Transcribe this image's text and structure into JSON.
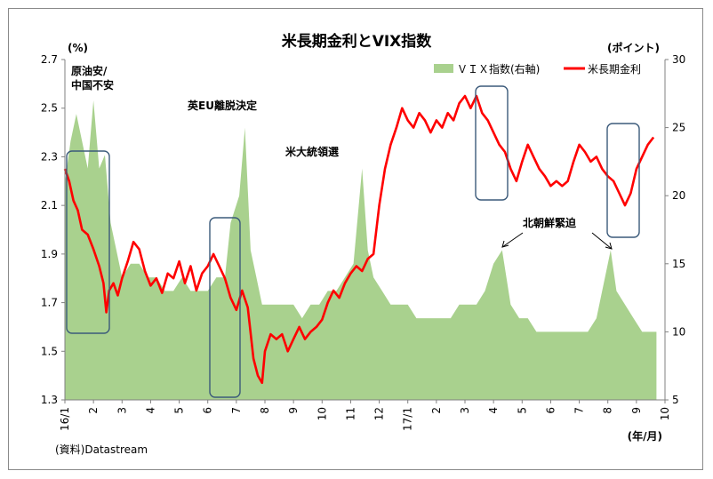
{
  "chart_data": {
    "type": "line",
    "title": "米長期金利とVIX指数",
    "y_left_unit": "(%)",
    "y_right_unit": "(ポイント)",
    "x_unit": "(年/月)",
    "source": "(資料)Datastream",
    "y_left_range": [
      1.3,
      2.7
    ],
    "y_left_ticks": [
      "2.7",
      "2.5",
      "2.3",
      "2.1",
      "1.9",
      "1.7",
      "1.5",
      "1.3"
    ],
    "y_right_range": [
      5,
      30
    ],
    "y_right_ticks": [
      "30",
      "25",
      "20",
      "15",
      "10",
      "5"
    ],
    "x_ticks": [
      "16/1",
      "2",
      "3",
      "4",
      "5",
      "6",
      "7",
      "8",
      "9",
      "10",
      "11",
      "12",
      "17/1",
      "2",
      "3",
      "4",
      "5",
      "6",
      "7",
      "8",
      "9",
      "10"
    ],
    "legend": {
      "vix_label": "ＶＩＸ指数(右軸)",
      "yield_label": "米長期金利",
      "position": "top-right"
    },
    "annotations": [
      {
        "label": "原油安/",
        "label2": "中国不安"
      },
      {
        "label": "英EU離脱決定"
      },
      {
        "label": "米大統領選"
      },
      {
        "label": "北朝鮮緊迫"
      }
    ],
    "series": [
      {
        "name": "米長期金利",
        "axis": "left",
        "color": "#ff0000",
        "points": [
          [
            0,
            2.25
          ],
          [
            0.15,
            2.2
          ],
          [
            0.3,
            2.12
          ],
          [
            0.45,
            2.08
          ],
          [
            0.6,
            2.0
          ],
          [
            0.8,
            1.98
          ],
          [
            1.0,
            1.92
          ],
          [
            1.2,
            1.85
          ],
          [
            1.35,
            1.78
          ],
          [
            1.45,
            1.66
          ],
          [
            1.55,
            1.75
          ],
          [
            1.7,
            1.78
          ],
          [
            1.85,
            1.73
          ],
          [
            2.0,
            1.8
          ],
          [
            2.2,
            1.87
          ],
          [
            2.4,
            1.95
          ],
          [
            2.6,
            1.92
          ],
          [
            2.8,
            1.83
          ],
          [
            3.0,
            1.77
          ],
          [
            3.2,
            1.8
          ],
          [
            3.4,
            1.74
          ],
          [
            3.6,
            1.82
          ],
          [
            3.8,
            1.8
          ],
          [
            4.0,
            1.87
          ],
          [
            4.2,
            1.78
          ],
          [
            4.4,
            1.85
          ],
          [
            4.6,
            1.75
          ],
          [
            4.8,
            1.82
          ],
          [
            5.0,
            1.85
          ],
          [
            5.2,
            1.9
          ],
          [
            5.4,
            1.85
          ],
          [
            5.6,
            1.8
          ],
          [
            5.8,
            1.72
          ],
          [
            6.0,
            1.67
          ],
          [
            6.2,
            1.75
          ],
          [
            6.4,
            1.68
          ],
          [
            6.6,
            1.47
          ],
          [
            6.75,
            1.4
          ],
          [
            6.9,
            1.37
          ],
          [
            7.0,
            1.5
          ],
          [
            7.2,
            1.57
          ],
          [
            7.4,
            1.55
          ],
          [
            7.6,
            1.57
          ],
          [
            7.8,
            1.5
          ],
          [
            8.0,
            1.55
          ],
          [
            8.2,
            1.6
          ],
          [
            8.4,
            1.55
          ],
          [
            8.6,
            1.58
          ],
          [
            8.8,
            1.6
          ],
          [
            9.0,
            1.63
          ],
          [
            9.2,
            1.7
          ],
          [
            9.4,
            1.75
          ],
          [
            9.6,
            1.72
          ],
          [
            9.8,
            1.78
          ],
          [
            10.0,
            1.82
          ],
          [
            10.2,
            1.85
          ],
          [
            10.4,
            1.83
          ],
          [
            10.6,
            1.88
          ],
          [
            10.8,
            1.9
          ],
          [
            11.0,
            2.1
          ],
          [
            11.2,
            2.25
          ],
          [
            11.4,
            2.35
          ],
          [
            11.6,
            2.42
          ],
          [
            11.8,
            2.5
          ],
          [
            12.0,
            2.45
          ],
          [
            12.2,
            2.42
          ],
          [
            12.4,
            2.48
          ],
          [
            12.6,
            2.45
          ],
          [
            12.8,
            2.4
          ],
          [
            13.0,
            2.45
          ],
          [
            13.2,
            2.42
          ],
          [
            13.4,
            2.48
          ],
          [
            13.6,
            2.45
          ],
          [
            13.8,
            2.52
          ],
          [
            14.0,
            2.55
          ],
          [
            14.2,
            2.5
          ],
          [
            14.4,
            2.55
          ],
          [
            14.6,
            2.48
          ],
          [
            14.8,
            2.45
          ],
          [
            15.0,
            2.4
          ],
          [
            15.2,
            2.35
          ],
          [
            15.4,
            2.32
          ],
          [
            15.6,
            2.25
          ],
          [
            15.8,
            2.2
          ],
          [
            16.0,
            2.28
          ],
          [
            16.2,
            2.35
          ],
          [
            16.4,
            2.3
          ],
          [
            16.6,
            2.25
          ],
          [
            16.8,
            2.22
          ],
          [
            17.0,
            2.18
          ],
          [
            17.2,
            2.2
          ],
          [
            17.4,
            2.18
          ],
          [
            17.6,
            2.2
          ],
          [
            17.8,
            2.28
          ],
          [
            18.0,
            2.35
          ],
          [
            18.2,
            2.32
          ],
          [
            18.4,
            2.28
          ],
          [
            18.6,
            2.3
          ],
          [
            18.8,
            2.25
          ],
          [
            19.0,
            2.22
          ],
          [
            19.2,
            2.2
          ],
          [
            19.4,
            2.15
          ],
          [
            19.6,
            2.1
          ],
          [
            19.8,
            2.15
          ],
          [
            20.0,
            2.25
          ],
          [
            20.2,
            2.3
          ],
          [
            20.4,
            2.35
          ],
          [
            20.6,
            2.38
          ]
        ]
      },
      {
        "name": "ＶＩＸ指数",
        "axis": "right",
        "color": "#a9d18e",
        "points": [
          [
            0,
            21
          ],
          [
            0.2,
            24
          ],
          [
            0.4,
            26
          ],
          [
            0.6,
            24
          ],
          [
            0.8,
            22
          ],
          [
            1.0,
            27
          ],
          [
            1.2,
            22
          ],
          [
            1.4,
            23
          ],
          [
            1.6,
            18
          ],
          [
            1.8,
            16
          ],
          [
            2.0,
            14
          ],
          [
            2.3,
            15
          ],
          [
            2.6,
            15
          ],
          [
            2.9,
            14
          ],
          [
            3.2,
            14
          ],
          [
            3.5,
            13
          ],
          [
            3.8,
            13
          ],
          [
            4.1,
            14
          ],
          [
            4.4,
            13
          ],
          [
            4.7,
            13
          ],
          [
            5.0,
            13
          ],
          [
            5.3,
            14
          ],
          [
            5.6,
            14
          ],
          [
            5.8,
            18
          ],
          [
            6.1,
            20
          ],
          [
            6.3,
            25
          ],
          [
            6.5,
            16
          ],
          [
            6.7,
            14
          ],
          [
            6.9,
            12
          ],
          [
            7.1,
            12
          ],
          [
            7.4,
            12
          ],
          [
            7.7,
            12
          ],
          [
            8.0,
            12
          ],
          [
            8.3,
            11
          ],
          [
            8.6,
            12
          ],
          [
            8.9,
            12
          ],
          [
            9.2,
            13
          ],
          [
            9.5,
            13
          ],
          [
            9.8,
            14
          ],
          [
            10.1,
            15
          ],
          [
            10.4,
            22
          ],
          [
            10.6,
            16
          ],
          [
            10.8,
            14
          ],
          [
            11.1,
            13
          ],
          [
            11.4,
            12
          ],
          [
            11.7,
            12
          ],
          [
            12.0,
            12
          ],
          [
            12.3,
            11
          ],
          [
            12.6,
            11
          ],
          [
            12.9,
            11
          ],
          [
            13.2,
            11
          ],
          [
            13.5,
            11
          ],
          [
            13.8,
            12
          ],
          [
            14.1,
            12
          ],
          [
            14.4,
            12
          ],
          [
            14.7,
            13
          ],
          [
            15.0,
            15
          ],
          [
            15.3,
            16
          ],
          [
            15.6,
            12
          ],
          [
            15.9,
            11
          ],
          [
            16.2,
            11
          ],
          [
            16.5,
            10
          ],
          [
            16.8,
            10
          ],
          [
            17.1,
            10
          ],
          [
            17.4,
            10
          ],
          [
            17.7,
            10
          ],
          [
            18.0,
            10
          ],
          [
            18.3,
            10
          ],
          [
            18.6,
            11
          ],
          [
            18.9,
            14
          ],
          [
            19.1,
            16
          ],
          [
            19.3,
            13
          ],
          [
            19.6,
            12
          ],
          [
            19.9,
            11
          ],
          [
            20.2,
            10
          ],
          [
            20.5,
            10
          ],
          [
            20.7,
            10
          ]
        ]
      }
    ]
  }
}
